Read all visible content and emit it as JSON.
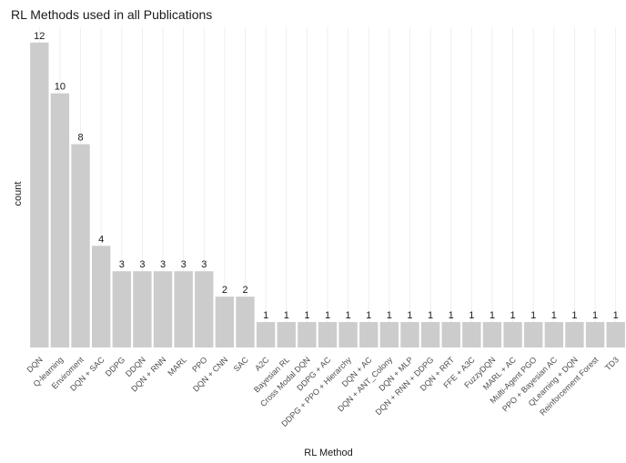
{
  "chart_data": {
    "type": "bar",
    "title": "RL Methods used in all Publications",
    "xlabel": "RL Method",
    "ylabel": "count",
    "categories": [
      "DQN",
      "Q-learning",
      "Enviroment",
      "DQN + SAC",
      "DDPG",
      "DDQN",
      "DQN + RNN",
      "MARL",
      "PPO",
      "DQN + CNN",
      "SAC",
      "A2C",
      "Bayesian RL",
      "Cross Modal DQN",
      "DDPG + AC",
      "DDPG + PPO + Hierarchy",
      "DQN + AC",
      "DQN + ANT_Colony",
      "DQN + MLP",
      "DQN + RNN + DDPG",
      "DQN + RRT",
      "FFE + A3C",
      "FuzzyDQN",
      "MARL + AC",
      "Multi-Agent PGO",
      "PPO + Bayesian AC",
      "QLearning + DQN",
      "Reinforcement Forest",
      "TD3"
    ],
    "values": [
      12,
      10,
      8,
      4,
      3,
      3,
      3,
      3,
      3,
      2,
      2,
      1,
      1,
      1,
      1,
      1,
      1,
      1,
      1,
      1,
      1,
      1,
      1,
      1,
      1,
      1,
      1,
      1,
      1
    ],
    "ylim": [
      0,
      12.6
    ],
    "grid": "vertical major lines",
    "colors": {
      "bar": "#cccccc",
      "grid": "#ebebeb",
      "text": "#1a1a1a",
      "tick": "#4d4d4d"
    }
  }
}
